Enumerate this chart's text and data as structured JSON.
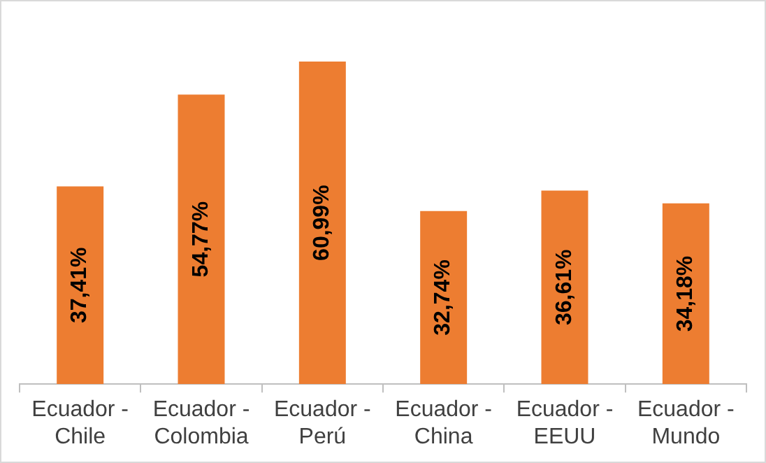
{
  "chart_data": {
    "type": "bar",
    "categories": [
      "Ecuador - Chile",
      "Ecuador - Colombia",
      "Ecuador - Perú",
      "Ecuador - China",
      "Ecuador - EEUU",
      "Ecuador - Mundo"
    ],
    "values": [
      37.41,
      54.77,
      60.99,
      32.74,
      36.61,
      34.18
    ],
    "value_labels": [
      "37,41%",
      "54,77%",
      "60,99%",
      "32,74%",
      "36,61%",
      "34,18%"
    ],
    "color": "#ed7d31",
    "grid": false,
    "legend": false
  }
}
